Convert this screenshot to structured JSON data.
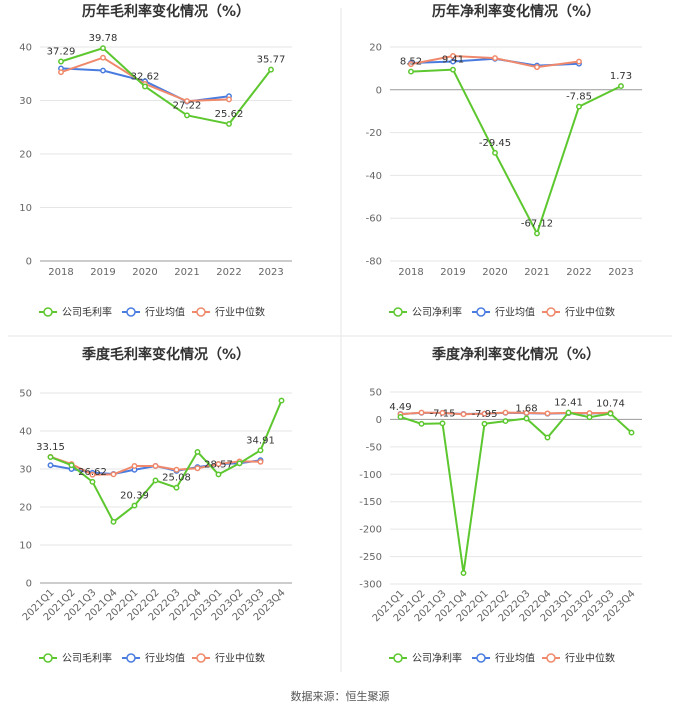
{
  "source": "数据来源：恒生聚源",
  "colors": {
    "company": "#5cc72e",
    "industry_avg": "#4a7ce0",
    "industry_median": "#f0896b",
    "grid": "#e6e6e6",
    "axis": "#999999"
  },
  "chart_data": [
    {
      "type": "line",
      "title": "历年毛利率变化情况（%）",
      "categories": [
        "2018",
        "2019",
        "2020",
        "2021",
        "2022",
        "2023"
      ],
      "ylim": [
        0,
        40
      ],
      "yticks": [
        0,
        10,
        20,
        30,
        40
      ],
      "grid": true,
      "legend_position": "bottom",
      "series": [
        {
          "name": "公司毛利率",
          "values": [
            37.29,
            39.78,
            32.62,
            27.22,
            25.62,
            35.77
          ]
        },
        {
          "name": "行业均值",
          "values": [
            36.0,
            35.6,
            33.6,
            29.8,
            30.8,
            null
          ]
        },
        {
          "name": "行业中位数",
          "values": [
            35.3,
            38.0,
            33.1,
            29.9,
            30.2,
            null
          ]
        }
      ],
      "data_labels": [
        "37.29",
        "39.78",
        "32.62",
        "27.22",
        "25.62",
        "35.77"
      ]
    },
    {
      "type": "line",
      "title": "历年净利率变化情况（%）",
      "categories": [
        "2018",
        "2019",
        "2020",
        "2021",
        "2022",
        "2023"
      ],
      "ylim": [
        -80,
        20
      ],
      "yticks": [
        -80,
        -60,
        -40,
        -20,
        0,
        20
      ],
      "grid": true,
      "legend_position": "bottom",
      "series": [
        {
          "name": "公司净利率",
          "values": [
            8.52,
            9.41,
            -29.45,
            -67.12,
            -7.85,
            1.73
          ]
        },
        {
          "name": "行业均值",
          "values": [
            12.5,
            13.2,
            14.5,
            11.3,
            12.2,
            null
          ]
        },
        {
          "name": "行业中位数",
          "values": [
            12.0,
            15.8,
            14.8,
            10.6,
            13.2,
            null
          ]
        }
      ],
      "data_labels": [
        "8.52",
        "9.41",
        "-29.45",
        "-67.12",
        "-7.85",
        "1.73"
      ]
    },
    {
      "type": "line",
      "title": "季度毛利率变化情况（%）",
      "categories": [
        "2021Q1",
        "2021Q2",
        "2021Q3",
        "2021Q4",
        "2022Q1",
        "2022Q2",
        "2022Q3",
        "2022Q4",
        "2023Q1",
        "2023Q2",
        "2023Q3",
        "2023Q4"
      ],
      "ylim": [
        0,
        50
      ],
      "yticks": [
        0,
        10,
        20,
        30,
        40,
        50
      ],
      "grid": true,
      "legend_position": "bottom",
      "series": [
        {
          "name": "公司毛利率",
          "values": [
            33.15,
            31.0,
            26.62,
            16.1,
            20.39,
            27.0,
            25.08,
            34.5,
            28.57,
            31.5,
            34.91,
            48.0
          ]
        },
        {
          "name": "行业均值",
          "values": [
            31.0,
            30.0,
            29.0,
            28.7,
            29.8,
            30.8,
            29.5,
            30.5,
            31.3,
            31.5,
            32.3,
            null
          ]
        },
        {
          "name": "行业中位数",
          "values": [
            33.2,
            31.3,
            28.5,
            28.6,
            30.8,
            30.8,
            29.8,
            30.2,
            31.3,
            32.0,
            31.9,
            null
          ]
        }
      ],
      "data_labels": [
        {
          "index": 0,
          "text": "33.15"
        },
        {
          "index": 2,
          "text": "26.62"
        },
        {
          "index": 4,
          "text": "20.39"
        },
        {
          "index": 6,
          "text": "25.08"
        },
        {
          "index": 8,
          "text": "28.57"
        },
        {
          "index": 10,
          "text": "34.91"
        }
      ]
    },
    {
      "type": "line",
      "title": "季度净利率变化情况（%）",
      "categories": [
        "2021Q1",
        "2021Q2",
        "2021Q3",
        "2021Q4",
        "2022Q1",
        "2022Q2",
        "2022Q3",
        "2022Q4",
        "2023Q1",
        "2023Q2",
        "2023Q3",
        "2023Q4"
      ],
      "ylim": [
        -300,
        50
      ],
      "yticks": [
        -300,
        -250,
        -200,
        -150,
        -100,
        -50,
        0,
        50
      ],
      "grid": true,
      "legend_position": "bottom",
      "series": [
        {
          "name": "公司净利率",
          "values": [
            4.49,
            -8.0,
            -7.15,
            -280.0,
            -7.95,
            -3.0,
            1.68,
            -33.0,
            12.41,
            4.0,
            10.74,
            -24.0
          ]
        },
        {
          "name": "行业均值",
          "values": [
            10.0,
            12.0,
            12.0,
            10.0,
            10.5,
            12.0,
            11.5,
            10.5,
            11.5,
            11.0,
            11.5,
            null
          ]
        },
        {
          "name": "行业中位数",
          "values": [
            9.5,
            12.5,
            12.0,
            9.5,
            10.5,
            12.5,
            12.0,
            11.0,
            12.0,
            11.5,
            12.0,
            null
          ]
        }
      ],
      "data_labels": [
        {
          "index": 0,
          "text": "4.49"
        },
        {
          "index": 2,
          "text": "-7.15"
        },
        {
          "index": 4,
          "text": "-7.95"
        },
        {
          "index": 6,
          "text": "1.68"
        },
        {
          "index": 8,
          "text": "12.41"
        },
        {
          "index": 10,
          "text": "10.74"
        }
      ]
    }
  ]
}
